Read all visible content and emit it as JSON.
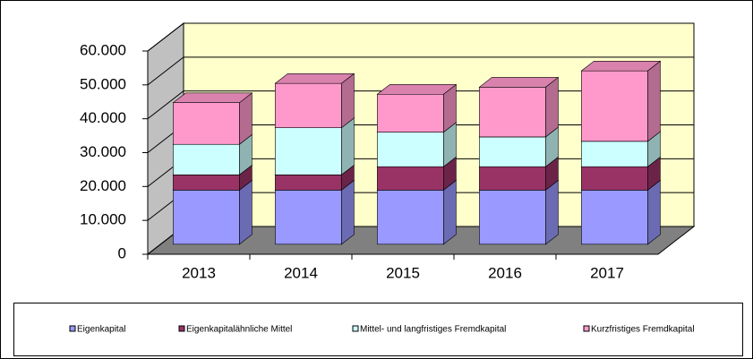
{
  "chart_data": {
    "type": "bar3d_stacked",
    "categories": [
      "2013",
      "2014",
      "2015",
      "2016",
      "2017"
    ],
    "series": [
      {
        "name": "Eigenkapital",
        "color": "#9999ff",
        "values": [
          16000,
          16000,
          16000,
          16000,
          16000
        ]
      },
      {
        "name": "Eigenkapitalähnliche Mittel",
        "color": "#993366",
        "values": [
          4500,
          4500,
          6900,
          6900,
          6900
        ]
      },
      {
        "name": "Mittel- und langfristiges Fremdkapital",
        "color": "#ccffff",
        "values": [
          9000,
          13900,
          10200,
          8800,
          7500
        ]
      },
      {
        "name": "Kurzfristiges Fremdkapital",
        "color": "#ff99cc",
        "values": [
          12300,
          13100,
          11200,
          14700,
          20800
        ]
      }
    ],
    "ylim": [
      0,
      60000
    ],
    "yticks": [
      0,
      {
        "value": 10000,
        "label": "10.000"
      },
      {
        "value": 20000,
        "label": "20.000"
      },
      {
        "value": 30000,
        "label": "30.000"
      },
      {
        "value": 40000,
        "label": "40.000"
      },
      {
        "value": 50000,
        "label": "50.000"
      },
      {
        "value": 60000,
        "label": "60.000"
      }
    ],
    "grid": true,
    "legend": "bottom"
  }
}
